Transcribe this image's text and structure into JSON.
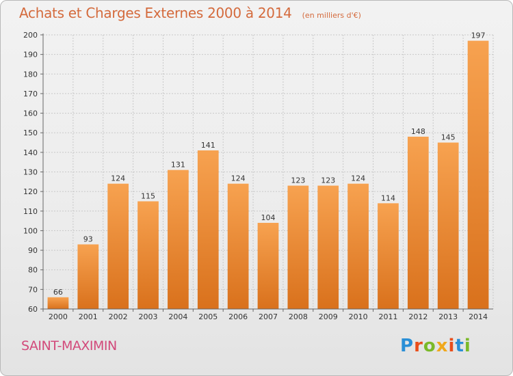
{
  "header": {
    "title": "Achats et Charges Externes 2000 à 2014",
    "subtitle": "(en milliers d'€)"
  },
  "footer": {
    "location": "SAINT-MAXIMIN",
    "logo_text": "Proxiti",
    "logo_colors": [
      "#2a8fd6",
      "#e94e1b",
      "#7ab929",
      "#f0a81c",
      "#e94e1b",
      "#2a8fd6",
      "#7ab929"
    ]
  },
  "colors": {
    "bar_light": "#f7a250",
    "bar_dark": "#d9711c",
    "accent": "#d46a3c"
  },
  "chart_data": {
    "type": "bar",
    "title": "Achats et Charges Externes 2000 à 2014",
    "subtitle": "(en milliers d'€)",
    "categories": [
      "2000",
      "2001",
      "2002",
      "2003",
      "2004",
      "2005",
      "2006",
      "2007",
      "2008",
      "2009",
      "2010",
      "2011",
      "2012",
      "2013",
      "2014"
    ],
    "values": [
      66,
      93,
      124,
      115,
      131,
      141,
      124,
      104,
      123,
      123,
      124,
      114,
      148,
      145,
      197
    ],
    "ylim": [
      60,
      200
    ],
    "yticks": [
      60,
      70,
      80,
      90,
      100,
      110,
      120,
      130,
      140,
      150,
      160,
      170,
      180,
      190,
      200
    ],
    "grid": true
  }
}
